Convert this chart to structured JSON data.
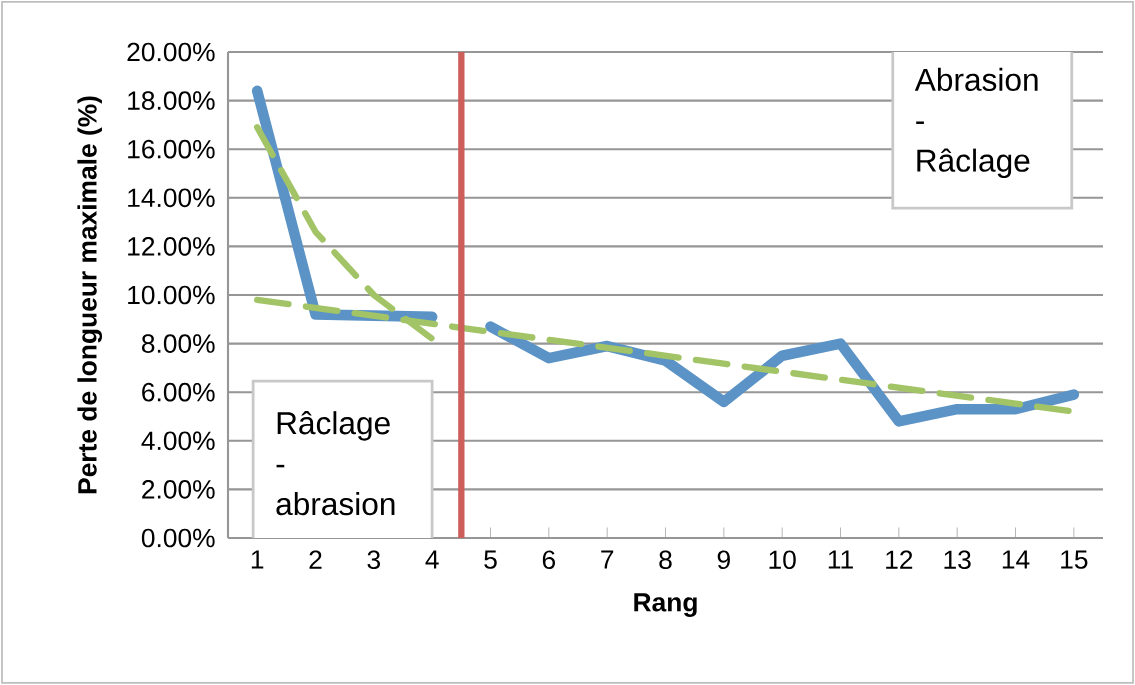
{
  "chart_data": {
    "type": "line",
    "xlabel": "Rang",
    "ylabel": "Perte de longueur maximale (%)",
    "x": [
      1,
      2,
      3,
      4,
      5,
      6,
      7,
      8,
      9,
      10,
      11,
      12,
      13,
      14,
      15
    ],
    "series": [
      {
        "color": "#5b93c6",
        "values": [
          18.4,
          9.2,
          9.15,
          9.1,
          null,
          null,
          null,
          null,
          null,
          null,
          null,
          null,
          null,
          null,
          null
        ]
      },
      {
        "color": "#5b93c6",
        "values": [
          null,
          null,
          null,
          null,
          8.7,
          7.4,
          7.9,
          7.3,
          5.6,
          7.5,
          8.0,
          4.8,
          5.3,
          5.3,
          5.9
        ]
      },
      {
        "color": "#a2c466",
        "line_style": "dashed",
        "values": [
          16.9,
          12.6,
          10.0,
          8.2,
          null,
          null,
          null,
          null,
          null,
          null,
          null,
          null,
          null,
          null,
          null
        ]
      },
      {
        "color": "#a2c466",
        "line_style": "dashed",
        "x": [
          1,
          15
        ],
        "values": [
          9.8,
          5.2
        ]
      }
    ],
    "xlim": [
      0.5,
      15.5
    ],
    "xticks": [
      1,
      2,
      3,
      4,
      5,
      6,
      7,
      8,
      9,
      10,
      11,
      12,
      13,
      14,
      15
    ],
    "ylim": [
      0,
      20
    ],
    "yticks": [
      {
        "value": 0,
        "label": "0.00%"
      },
      {
        "value": 2,
        "label": "2.00%"
      },
      {
        "value": 4,
        "label": "4.00%"
      },
      {
        "value": 6,
        "label": "6.00%"
      },
      {
        "value": 8,
        "label": "8.00%"
      },
      {
        "value": 10,
        "label": "10.00%"
      },
      {
        "value": 12,
        "label": "12.00%"
      },
      {
        "value": 14,
        "label": "14.00%"
      },
      {
        "value": 16,
        "label": "16.00%"
      },
      {
        "value": 18,
        "label": "18.00%"
      },
      {
        "value": 20,
        "label": "20.00%"
      }
    ],
    "grid": "y",
    "ref_lines": [
      {
        "axis": "x",
        "value": 4.5,
        "color": "#cd5f5b"
      }
    ],
    "annotations": [
      "Râclage - abrasion",
      "Abrasion - Râclage"
    ]
  }
}
